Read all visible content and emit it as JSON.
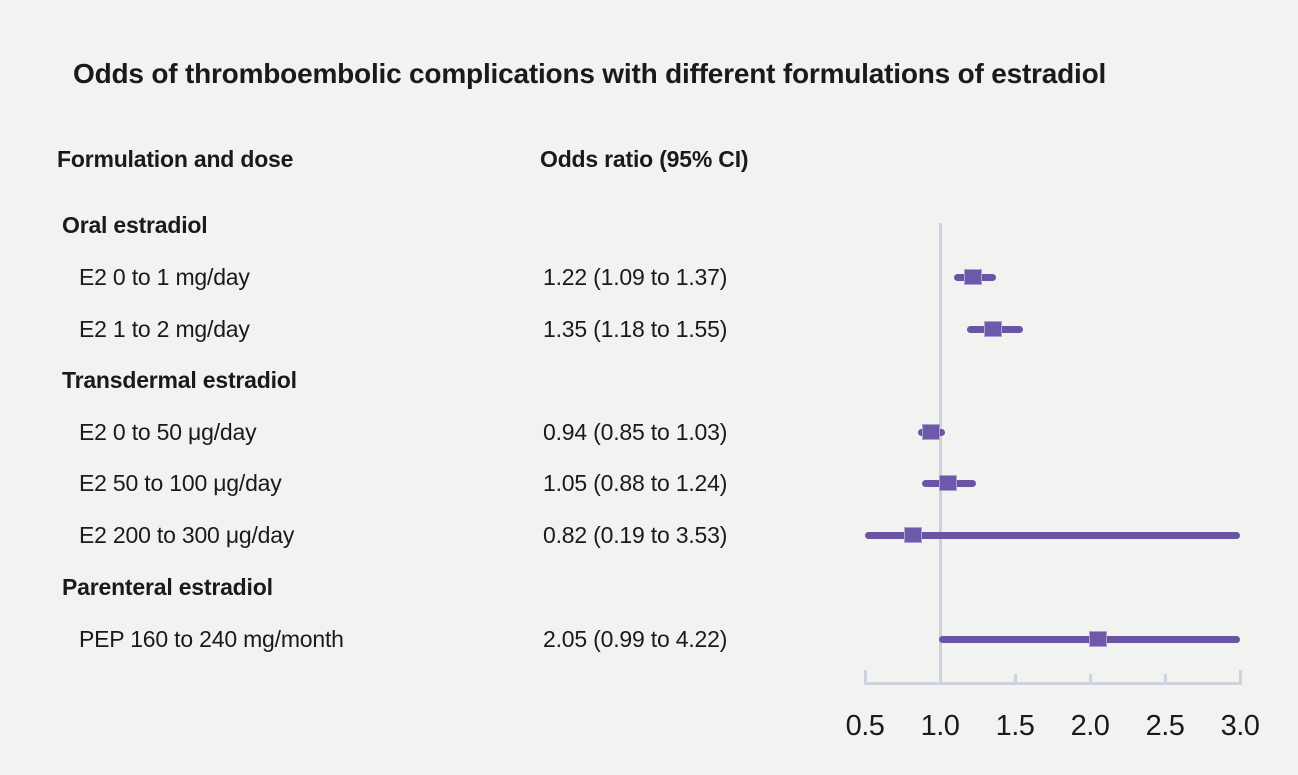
{
  "title": "Odds of thromboembolic complications with different formulations of estradiol",
  "columns": {
    "formulation": "Formulation and dose",
    "odds_ratio": "Odds ratio (95% CI)"
  },
  "rows": [
    {
      "type": "group",
      "label": "Oral estradiol",
      "or_text": ""
    },
    {
      "type": "item",
      "label": "E2 0 to 1 mg/day",
      "or_text": "1.22 (1.09 to 1.37)"
    },
    {
      "type": "item",
      "label": "E2 1 to 2 mg/day",
      "or_text": "1.35 (1.18 to 1.55)"
    },
    {
      "type": "group",
      "label": "Transdermal estradiol",
      "or_text": ""
    },
    {
      "type": "item",
      "label": "E2 0 to 50 μg/day",
      "or_text": "0.94 (0.85 to 1.03)"
    },
    {
      "type": "item",
      "label": "E2 50 to 100 μg/day",
      "or_text": "1.05 (0.88 to 1.24)"
    },
    {
      "type": "item",
      "label": "E2 200 to 300 μg/day",
      "or_text": "0.82 (0.19 to 3.53)"
    },
    {
      "type": "group",
      "label": "Parenteral estradiol",
      "or_text": ""
    },
    {
      "type": "item",
      "label": "PEP 160 to 240 mg/month",
      "or_text": "2.05 (0.99 to 4.22)"
    }
  ],
  "chart_data": {
    "type": "forest",
    "title": "Odds of thromboembolic complications with different formulations of estradiol",
    "xlabel": "Odds ratio",
    "xlim": [
      0.5,
      3.0
    ],
    "x_ticks": [
      0.5,
      1.0,
      1.5,
      2.0,
      2.5,
      3.0
    ],
    "tick_labels": [
      "0.5",
      "1.0",
      "1.5",
      "2.0",
      "2.5",
      "3.0"
    ],
    "reference_line": 1.0,
    "clip_ci_to_xlim": true,
    "points": [
      {
        "label": "E2 0 to 1 mg/day",
        "or": 1.22,
        "ci_low": 1.09,
        "ci_high": 1.37
      },
      {
        "label": "E2 1 to 2 mg/day",
        "or": 1.35,
        "ci_low": 1.18,
        "ci_high": 1.55
      },
      {
        "label": "E2 0 to 50 μg/day",
        "or": 0.94,
        "ci_low": 0.85,
        "ci_high": 1.03
      },
      {
        "label": "E2 50 to 100 μg/day",
        "or": 1.05,
        "ci_low": 0.88,
        "ci_high": 1.24
      },
      {
        "label": "E2 200 to 300 μg/day",
        "or": 0.82,
        "ci_low": 0.19,
        "ci_high": 3.53
      },
      {
        "label": "PEP 160 to 240 mg/month",
        "or": 2.05,
        "ci_low": 0.99,
        "ci_high": 4.22
      }
    ],
    "colors": {
      "marker_fill": "#6e58a9",
      "marker_border": "#ab9fd5",
      "ci_line": "#6a55a4",
      "axis": "#cdd3de",
      "background": "#f2f2f1",
      "text": "#1a1a1a"
    }
  }
}
